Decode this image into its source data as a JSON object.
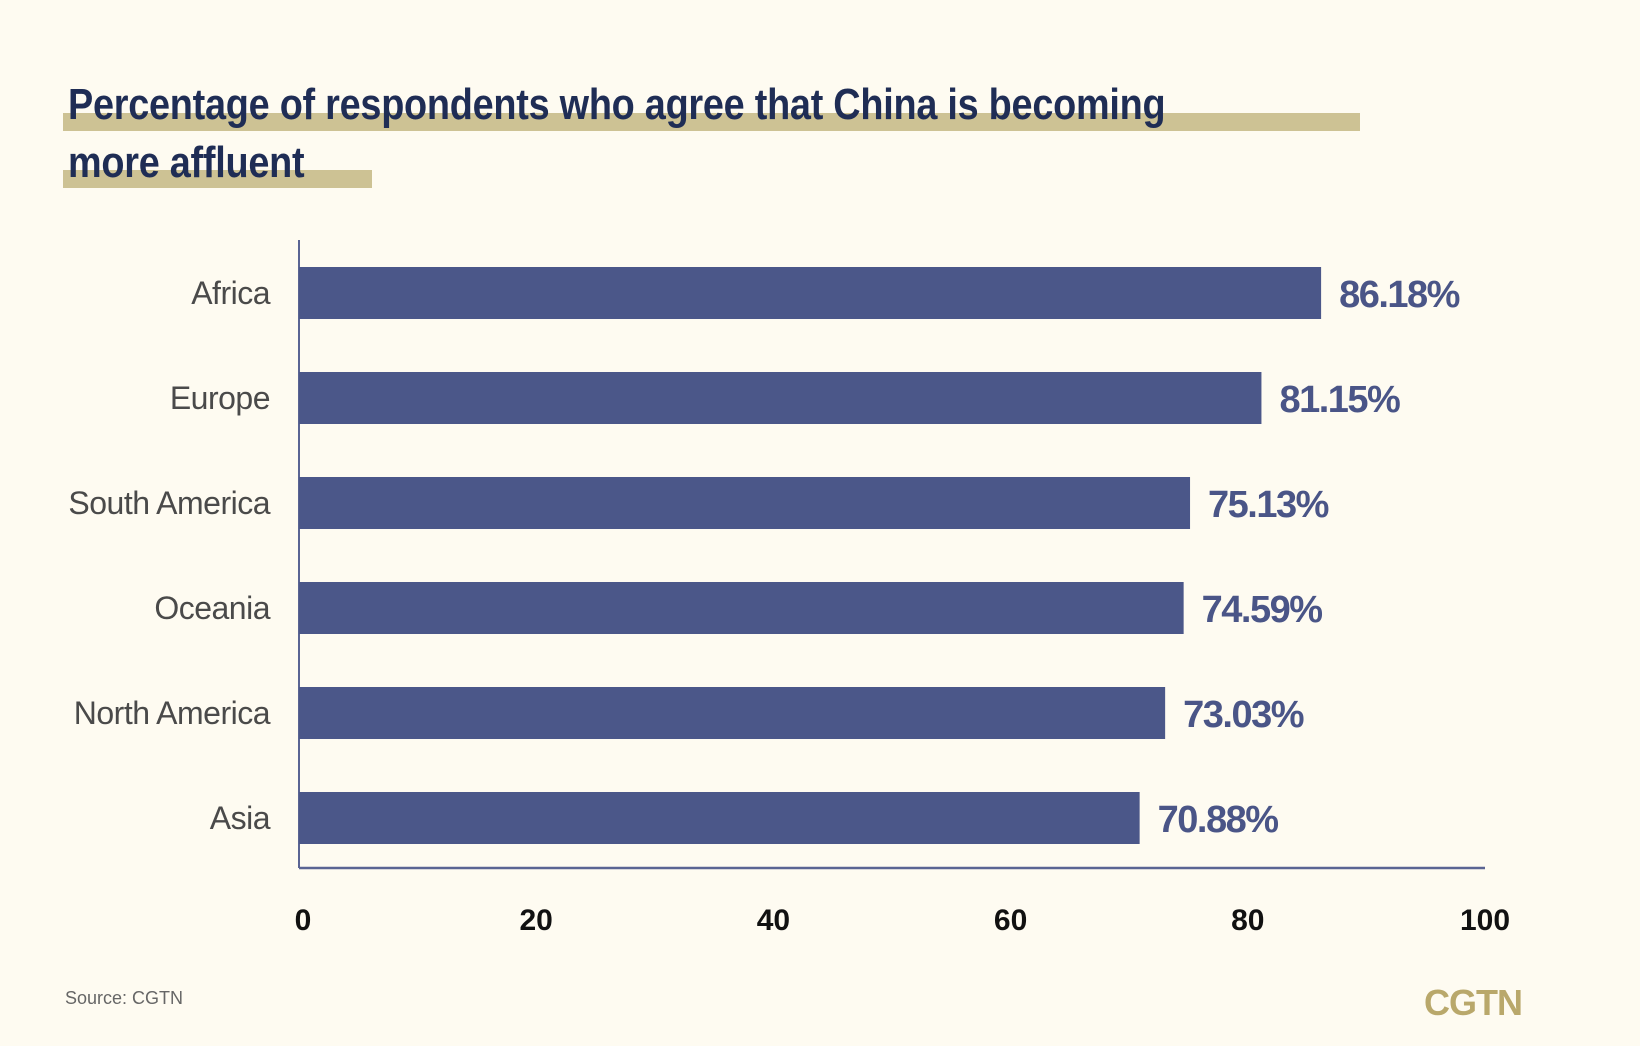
{
  "chart_data": {
    "type": "bar",
    "orientation": "horizontal",
    "title": "Percentage of respondents who agree that China is becoming more affluent",
    "title_lines": [
      "Percentage of respondents who agree that China is becoming",
      "more affluent"
    ],
    "categories": [
      "Africa",
      "Europe",
      "South America",
      "Oceania",
      "North America",
      "Asia"
    ],
    "values": [
      86.18,
      81.15,
      75.13,
      74.59,
      73.03,
      70.88
    ],
    "value_labels": [
      "86.18%",
      "81.15%",
      "75.13%",
      "74.59%",
      "73.03%",
      "70.88%"
    ],
    "xlim": [
      0,
      100
    ],
    "xticks": [
      0,
      20,
      40,
      60,
      80,
      100
    ],
    "xlabel": "",
    "ylabel": "",
    "grid": false,
    "colors": {
      "bar": "#4b5789",
      "label": "#4a5587",
      "highlight": "#cdc294",
      "title": "#1f2d55",
      "background": "#fefbf1"
    }
  },
  "footer": {
    "source": "Source: CGTN",
    "logo": "CGTN"
  }
}
